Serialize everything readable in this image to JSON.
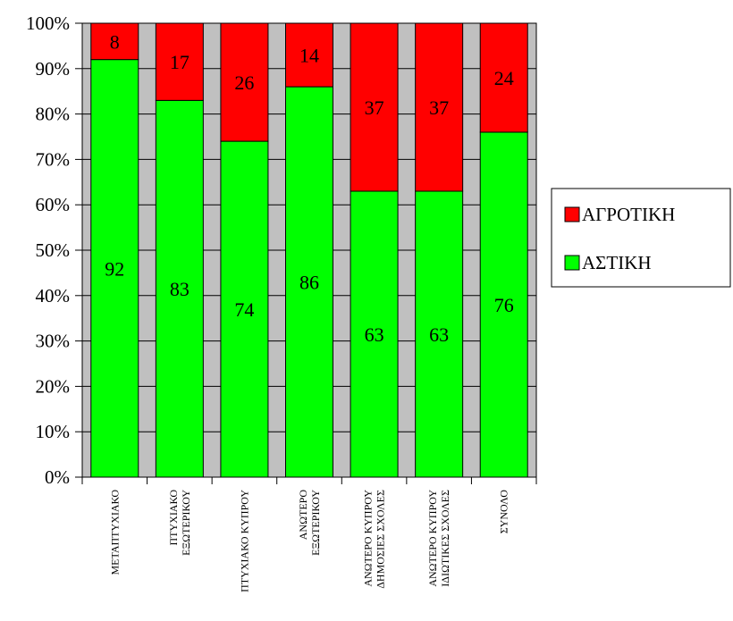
{
  "chart_data": {
    "type": "bar",
    "stacked": true,
    "percent": true,
    "categories": [
      [
        "ΜΕΤΑΠΤΥΧΙΑΚΟ"
      ],
      [
        "ΠΤΥΧΙΑΚΟ",
        "ΕΞΩΤΕΡΙΚΟΥ"
      ],
      [
        "ΠΤΥΧΙΑΚΟ ΚΥΠΡΟΥ"
      ],
      [
        "ΑΝΩΤΕΡΟ",
        "ΕΞΩΤΕΡΙΚΟΥ"
      ],
      [
        "ΑΝΩΤΕΡΟ ΚΥΠΡΟΥ",
        "ΔΗΜΟΣΙΕΣ ΣΧΟΛΕΣ"
      ],
      [
        "ΑΝΩΤΕΡΟ ΚΥΠΡΟΥ",
        "ΙΔΙΩΤΙΚΕΣ ΣΧΟΛΕΣ"
      ],
      [
        "ΣΥΝΟΛΟ"
      ]
    ],
    "series": [
      {
        "name": "ΑΣΤΙΚΗ",
        "color": "#00ff00",
        "values": [
          92,
          83,
          74,
          86,
          63,
          63,
          76
        ]
      },
      {
        "name": "ΑΓΡΟΤΙΚΗ",
        "color": "#ff0000",
        "values": [
          8,
          17,
          26,
          14,
          37,
          37,
          24
        ]
      }
    ],
    "yticks": [
      "0%",
      "10%",
      "20%",
      "30%",
      "40%",
      "50%",
      "60%",
      "70%",
      "80%",
      "90%",
      "100%"
    ],
    "ylim": [
      0,
      100
    ],
    "grid": true,
    "plot_background": "#c0c0c0",
    "legend": {
      "position": "right",
      "order": [
        "ΑΓΡΟΤΙΚΗ",
        "ΑΣΤΙΚΗ"
      ]
    }
  }
}
